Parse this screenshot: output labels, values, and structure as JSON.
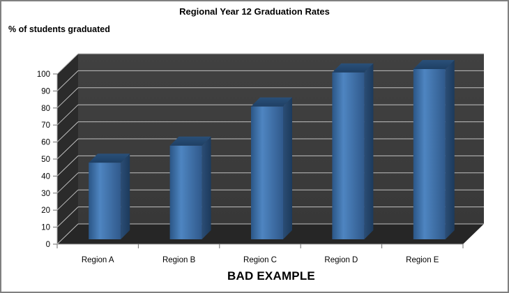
{
  "chart_data": {
    "type": "bar",
    "style": "3d-column-dark-walls",
    "title": "Regional Year 12 Graduation Rates",
    "y_axis_title": "% of students graduated",
    "caption": "BAD EXAMPLE",
    "categories": [
      "Region A",
      "Region B",
      "Region C",
      "Region D",
      "Region E"
    ],
    "values": [
      45,
      55,
      78,
      98,
      100
    ],
    "ylim": [
      0,
      100
    ],
    "ytick_step": 10,
    "yticks": [
      0,
      10,
      20,
      30,
      40,
      50,
      60,
      70,
      80,
      90,
      100
    ],
    "grid": true,
    "legend": false,
    "colors": {
      "bar_front_edge": "#2b5686",
      "bar_front_light": "#4e85c1",
      "bar_front_dark": "#30598b",
      "bar_side_dark": "#1c3a5c",
      "bar_side_light": "#2b4d75",
      "bar_top_front": "#27497010",
      "bar_top": "#1e3f64",
      "back_wall": "#3c3c3c",
      "left_wall": "#2b2b2b",
      "floor": "#262626",
      "gridline": "#c0c0c0",
      "axis_line": "#a6a6a6",
      "tick": "#6e6e6e",
      "text": "#000000",
      "frame_border": "#808080",
      "background": "#ffffff"
    }
  }
}
